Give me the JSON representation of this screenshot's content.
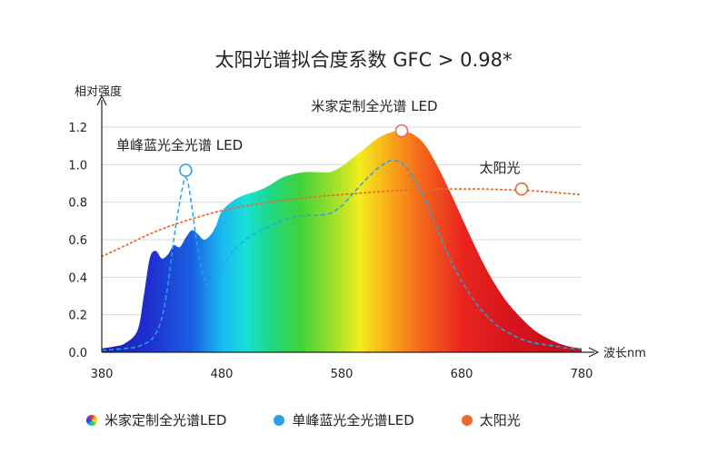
{
  "title": "太阳光谱拟合度系数 GFC > 0.98*",
  "legend": {
    "items": [
      {
        "label": "米家定制全光谱LED"
      },
      {
        "label": "单峰蓝光全光谱LED"
      },
      {
        "label": "太阳光"
      }
    ]
  },
  "colors": {
    "mi_led_peak_marker": "#e26a6a",
    "blue_led_line": "#29a3e6",
    "sunlight_line": "#ec6a2a",
    "axis": "#222222",
    "grid": "#d9d9d9"
  },
  "chart_data": {
    "type": "area",
    "title": "太阳光谱拟合度系数 GFC > 0.98*",
    "xlabel": "波长nm",
    "ylabel": "相对强度",
    "xlim": [
      380,
      780
    ],
    "ylim": [
      0,
      1.2
    ],
    "xticks": [
      380,
      480,
      580,
      680,
      780
    ],
    "yticks": [
      0.0,
      0.2,
      0.4,
      0.6,
      0.8,
      1.0,
      1.2
    ],
    "grid": true,
    "legend_position": "bottom",
    "annotations": [
      {
        "text": "米家定制全光谱 LED",
        "series": "米家定制全光谱LED",
        "x": 630,
        "y": 1.18
      },
      {
        "text": "单峰蓝光全光谱 LED",
        "series": "单峰蓝光全光谱LED",
        "x": 450,
        "y": 0.97
      },
      {
        "text": "太阳光",
        "series": "太阳光",
        "x": 730,
        "y": 0.87
      }
    ],
    "series": [
      {
        "name": "米家定制全光谱LED",
        "style": "filled-rainbow",
        "x": [
          380,
          390,
          400,
          410,
          415,
          420,
          425,
          430,
          435,
          440,
          445,
          450,
          455,
          460,
          465,
          470,
          475,
          480,
          490,
          500,
          510,
          520,
          530,
          540,
          550,
          560,
          570,
          580,
          590,
          600,
          610,
          620,
          630,
          640,
          650,
          660,
          670,
          680,
          690,
          700,
          710,
          720,
          730,
          740,
          750,
          760,
          770,
          780
        ],
        "y": [
          0.02,
          0.03,
          0.05,
          0.12,
          0.3,
          0.5,
          0.54,
          0.5,
          0.52,
          0.57,
          0.56,
          0.61,
          0.65,
          0.63,
          0.6,
          0.62,
          0.67,
          0.75,
          0.81,
          0.84,
          0.86,
          0.89,
          0.93,
          0.95,
          0.96,
          0.96,
          0.96,
          0.99,
          1.04,
          1.09,
          1.14,
          1.17,
          1.18,
          1.16,
          1.1,
          0.99,
          0.86,
          0.72,
          0.58,
          0.45,
          0.34,
          0.25,
          0.18,
          0.12,
          0.08,
          0.05,
          0.03,
          0.02
        ]
      },
      {
        "name": "单峰蓝光全光谱LED",
        "style": "dashed",
        "x": [
          380,
          400,
          410,
          420,
          425,
          430,
          435,
          440,
          445,
          448,
          450,
          452,
          455,
          460,
          465,
          470,
          475,
          480,
          490,
          500,
          510,
          520,
          530,
          540,
          550,
          560,
          570,
          580,
          590,
          600,
          610,
          620,
          625,
          630,
          640,
          650,
          660,
          670,
          680,
          690,
          700,
          710,
          720,
          730,
          740,
          750,
          760,
          770,
          780
        ],
        "y": [
          0.01,
          0.02,
          0.03,
          0.06,
          0.1,
          0.18,
          0.35,
          0.6,
          0.8,
          0.9,
          0.93,
          0.9,
          0.78,
          0.55,
          0.4,
          0.35,
          0.38,
          0.45,
          0.54,
          0.6,
          0.64,
          0.67,
          0.7,
          0.72,
          0.73,
          0.73,
          0.74,
          0.78,
          0.85,
          0.92,
          0.98,
          1.02,
          1.02,
          1.01,
          0.93,
          0.8,
          0.65,
          0.5,
          0.38,
          0.28,
          0.2,
          0.14,
          0.1,
          0.07,
          0.05,
          0.04,
          0.03,
          0.02,
          0.02
        ]
      },
      {
        "name": "太阳光",
        "style": "dotted",
        "x": [
          380,
          400,
          420,
          440,
          460,
          480,
          500,
          520,
          540,
          560,
          580,
          600,
          620,
          640,
          660,
          680,
          700,
          720,
          740,
          760,
          780
        ],
        "y": [
          0.51,
          0.57,
          0.63,
          0.68,
          0.72,
          0.755,
          0.78,
          0.8,
          0.815,
          0.83,
          0.84,
          0.85,
          0.86,
          0.865,
          0.87,
          0.87,
          0.87,
          0.865,
          0.86,
          0.85,
          0.84
        ]
      }
    ]
  }
}
